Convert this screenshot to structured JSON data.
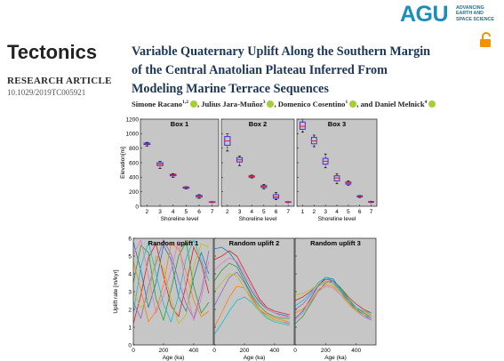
{
  "header": {
    "logo": "AGU",
    "logo_tagline": [
      "ADVANCING",
      "EARTH AND",
      "SPACE SCIENCE"
    ],
    "journal": "Tectonics",
    "article_type": "RESEARCH ARTICLE",
    "doi": "10.1029/2019TC005921"
  },
  "title_lines": [
    "Variable Quaternary Uplift Along the Southern Margin",
    "of the Central Anatolian Plateau Inferred From",
    "Modeling Marine Terrace Sequences"
  ],
  "authors": [
    {
      "name": "Simone Racano",
      "affil": "1,2"
    },
    {
      "name": "Julius Jara-Muñoz",
      "affil": "3"
    },
    {
      "name": "Domenico Cosentino",
      "affil": "1"
    },
    {
      "name": "Daniel Melnick",
      "affil": "4"
    }
  ],
  "author_separators": [
    ", ",
    ", ",
    ", and "
  ],
  "chart_data": [
    {
      "type": "box",
      "ylabel": "Elevation[m]",
      "xlabel": "Shoreline level",
      "ylim": [
        0,
        1200
      ],
      "yticks": [
        0,
        200,
        400,
        600,
        800,
        1000,
        1200
      ],
      "box_color": "#4b30d0",
      "median_color": "#e0202a",
      "panels": [
        {
          "title": "Box 1",
          "xlim": [
            1.5,
            7.5
          ],
          "xticks": [
            2,
            3,
            4,
            5,
            6,
            7
          ],
          "boxes": [
            {
              "x": 2,
              "low": 830,
              "q1": 850,
              "median": 860,
              "q3": 870,
              "high": 880
            },
            {
              "x": 3,
              "low": 520,
              "q1": 560,
              "median": 580,
              "q3": 600,
              "high": 620
            },
            {
              "x": 4,
              "low": 400,
              "q1": 420,
              "median": 430,
              "q3": 440,
              "high": 450
            },
            {
              "x": 5,
              "low": 240,
              "q1": 250,
              "median": 260,
              "q3": 265,
              "high": 270
            },
            {
              "x": 6,
              "low": 110,
              "q1": 125,
              "median": 140,
              "q3": 150,
              "high": 160
            },
            {
              "x": 7,
              "low": 50,
              "q1": 55,
              "median": 60,
              "q3": 62,
              "high": 65
            }
          ]
        },
        {
          "title": "Box 2",
          "xlim": [
            1.5,
            7.5
          ],
          "xticks": [
            2,
            3,
            4,
            5,
            6,
            7
          ],
          "boxes": [
            {
              "x": 2,
              "low": 760,
              "q1": 840,
              "median": 900,
              "q3": 960,
              "high": 1000
            },
            {
              "x": 3,
              "low": 560,
              "q1": 610,
              "median": 640,
              "q3": 670,
              "high": 690
            },
            {
              "x": 4,
              "low": 390,
              "q1": 400,
              "median": 410,
              "q3": 420,
              "high": 430
            },
            {
              "x": 5,
              "low": 240,
              "q1": 260,
              "median": 270,
              "q3": 285,
              "high": 300
            },
            {
              "x": 6,
              "low": 90,
              "q1": 110,
              "median": 130,
              "q3": 160,
              "high": 190
            },
            {
              "x": 7,
              "low": 50,
              "q1": 55,
              "median": 60,
              "q3": 62,
              "high": 65
            }
          ]
        },
        {
          "title": "Box 3",
          "xlim": [
            0.5,
            7.5
          ],
          "xticks": [
            1,
            2,
            3,
            4,
            5,
            6,
            7
          ],
          "boxes": [
            {
              "x": 1,
              "low": 1020,
              "q1": 1060,
              "median": 1100,
              "q3": 1160,
              "high": 1200
            },
            {
              "x": 2,
              "low": 820,
              "q1": 860,
              "median": 900,
              "q3": 950,
              "high": 980
            },
            {
              "x": 3,
              "low": 530,
              "q1": 580,
              "median": 620,
              "q3": 660,
              "high": 720
            },
            {
              "x": 4,
              "low": 310,
              "q1": 350,
              "median": 390,
              "q3": 420,
              "high": 450
            },
            {
              "x": 5,
              "low": 290,
              "q1": 305,
              "median": 320,
              "q3": 335,
              "high": 350
            },
            {
              "x": 6,
              "low": 120,
              "q1": 130,
              "median": 140,
              "q3": 145,
              "high": 150
            },
            {
              "x": 7,
              "low": 50,
              "q1": 55,
              "median": 60,
              "q3": 65,
              "high": 70
            }
          ]
        }
      ]
    },
    {
      "type": "line",
      "ylabel": "Uplift rate [m/kyr]",
      "xlabel": "Age (ka)",
      "ylim": [
        0,
        6
      ],
      "yticks": [
        0,
        1,
        2,
        3,
        4,
        5,
        6
      ],
      "panels": [
        {
          "title": "Random uplift 1",
          "xlim": [
            0,
            530
          ],
          "xticks": [
            0,
            200,
            400
          ],
          "x": [
            0,
            50,
            100,
            150,
            200,
            250,
            300,
            350,
            400,
            450,
            500
          ],
          "series": [
            {
              "color": "#1f77b4",
              "values": [
                5.8,
                4.2,
                2.1,
                3.5,
                5.6,
                4.8,
                2.7,
                1.9,
                3.8,
                5.2,
                4.0
              ]
            },
            {
              "color": "#d62728",
              "values": [
                1.2,
                2.8,
                4.9,
                5.7,
                3.9,
                2.2,
                1.6,
                3.4,
                5.5,
                4.6,
                2.9
              ]
            },
            {
              "color": "#2ca02c",
              "values": [
                3.5,
                5.6,
                5.2,
                2.6,
                1.4,
                3.1,
                5.0,
                5.8,
                3.3,
                1.8,
                2.4
              ]
            },
            {
              "color": "#9467bd",
              "values": [
                2.4,
                1.5,
                3.3,
                4.6,
                5.9,
                5.1,
                3.6,
                2.3,
                1.5,
                3.0,
                5.3
              ]
            },
            {
              "color": "#ff7f0e",
              "values": [
                4.7,
                3.1,
                1.3,
                1.9,
                3.4,
                5.7,
                5.4,
                4.1,
                2.5,
                1.6,
                1.9
              ]
            },
            {
              "color": "#17becf",
              "values": [
                1.8,
                4.4,
                5.8,
                4.0,
                2.3,
                1.3,
                2.8,
                4.9,
                5.9,
                4.8,
                3.6
              ]
            },
            {
              "color": "#e377c2",
              "values": [
                5.1,
                5.9,
                3.9,
                1.8,
                2.8,
                4.2,
                5.9,
                3.1,
                1.4,
                2.6,
                4.7
              ]
            },
            {
              "color": "#bcbd22",
              "values": [
                3.0,
                2.1,
                2.6,
                5.0,
                4.3,
                2.6,
                1.2,
                1.7,
                4.4,
                5.7,
                5.5
              ]
            }
          ]
        },
        {
          "title": "Random uplift 2",
          "xlim": [
            0,
            530
          ],
          "xticks": [
            0,
            200,
            400
          ],
          "x": [
            0,
            50,
            100,
            150,
            200,
            250,
            300,
            350,
            400,
            450,
            500
          ],
          "series": [
            {
              "color": "#1f77b4",
              "values": [
                5.4,
                5.5,
                5.2,
                4.6,
                3.8,
                3.0,
                2.4,
                2.0,
                1.8,
                1.7,
                1.6
              ]
            },
            {
              "color": "#d62728",
              "values": [
                4.8,
                5.0,
                5.3,
                5.0,
                4.2,
                3.4,
                2.6,
                2.1,
                1.9,
                1.8,
                1.7
              ]
            },
            {
              "color": "#2ca02c",
              "values": [
                3.6,
                4.2,
                4.6,
                4.4,
                3.6,
                2.8,
                2.2,
                1.8,
                1.6,
                1.5,
                1.5
              ]
            },
            {
              "color": "#9467bd",
              "values": [
                2.2,
                3.0,
                3.8,
                4.1,
                3.5,
                2.7,
                2.0,
                1.6,
                1.4,
                1.3,
                1.2
              ]
            },
            {
              "color": "#ff7f0e",
              "values": [
                1.0,
                1.8,
                2.7,
                3.3,
                3.2,
                2.6,
                2.0,
                1.7,
                1.5,
                1.4,
                1.3
              ]
            },
            {
              "color": "#17becf",
              "values": [
                0.6,
                1.2,
                1.9,
                2.5,
                2.7,
                2.4,
                1.9,
                1.5,
                1.3,
                1.2,
                1.1
              ]
            },
            {
              "color": "#e377c2",
              "values": [
                4.2,
                4.6,
                4.9,
                4.7,
                4.0,
                3.2,
                2.5,
                2.0,
                1.8,
                1.6,
                1.6
              ]
            },
            {
              "color": "#bcbd22",
              "values": [
                3.0,
                3.5,
                4.0,
                3.9,
                3.2,
                2.5,
                1.9,
                1.6,
                1.4,
                1.3,
                1.3
              ]
            }
          ]
        },
        {
          "title": "Random uplift 3",
          "xlim": [
            0,
            530
          ],
          "xticks": [
            0,
            200,
            400
          ],
          "x": [
            0,
            50,
            100,
            150,
            200,
            250,
            300,
            350,
            400,
            450,
            500
          ],
          "series": [
            {
              "color": "#1f77b4",
              "values": [
                1.5,
                1.9,
                2.6,
                3.3,
                3.8,
                3.7,
                3.1,
                2.5,
                2.0,
                1.7,
                1.5
              ]
            },
            {
              "color": "#d62728",
              "values": [
                2.5,
                2.7,
                3.0,
                3.4,
                3.7,
                3.6,
                3.2,
                2.7,
                2.3,
                2.0,
                1.8
              ]
            },
            {
              "color": "#2ca02c",
              "values": [
                1.2,
                1.6,
                2.3,
                3.0,
                3.5,
                3.6,
                3.2,
                2.6,
                2.1,
                1.8,
                1.6
              ]
            },
            {
              "color": "#9467bd",
              "values": [
                2.0,
                2.3,
                2.8,
                3.3,
                3.6,
                3.5,
                3.0,
                2.4,
                1.9,
                1.6,
                1.4
              ]
            },
            {
              "color": "#ff7f0e",
              "values": [
                1.8,
                2.0,
                2.5,
                3.1,
                3.4,
                3.3,
                2.9,
                2.4,
                2.0,
                1.9,
                1.7
              ]
            },
            {
              "color": "#17becf",
              "values": [
                2.2,
                2.5,
                2.9,
                3.5,
                3.8,
                3.6,
                3.0,
                2.5,
                2.1,
                1.9,
                1.8
              ]
            },
            {
              "color": "#e377c2",
              "values": [
                1.4,
                1.8,
                2.4,
                3.0,
                3.3,
                3.2,
                2.8,
                2.3,
                1.9,
                1.6,
                1.5
              ]
            },
            {
              "color": "#bcbd22",
              "values": [
                2.8,
                2.9,
                3.1,
                3.4,
                3.6,
                3.4,
                2.9,
                2.3,
                1.9,
                1.7,
                1.6
              ]
            }
          ]
        }
      ]
    }
  ]
}
